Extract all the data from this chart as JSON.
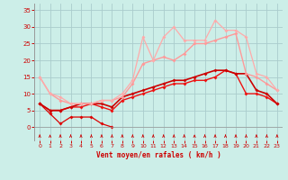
{
  "background_color": "#cceee8",
  "grid_color": "#aacccc",
  "xlabel": "Vent moyen/en rafales ( km/h )",
  "ylabel_ticks": [
    0,
    5,
    10,
    15,
    20,
    25,
    30,
    35
  ],
  "xlim": [
    -0.5,
    23.5
  ],
  "ylim": [
    -4,
    37
  ],
  "xticks": [
    0,
    1,
    2,
    3,
    4,
    5,
    6,
    7,
    8,
    9,
    10,
    11,
    12,
    13,
    14,
    15,
    16,
    17,
    18,
    19,
    20,
    21,
    22,
    23
  ],
  "series": [
    {
      "x": [
        0,
        1,
        2,
        3,
        4,
        5,
        6,
        7,
        8,
        9,
        10,
        11,
        12,
        13,
        14,
        15,
        16,
        17,
        18,
        19,
        20,
        21,
        22,
        23
      ],
      "y": [
        7,
        4,
        1,
        3,
        3,
        3,
        1,
        0,
        null,
        null,
        null,
        null,
        null,
        null,
        null,
        null,
        null,
        null,
        null,
        null,
        null,
        null,
        null,
        null
      ],
      "color": "#dd0000",
      "lw": 0.9,
      "marker": "D",
      "ms": 2.0
    },
    {
      "x": [
        0,
        1,
        2,
        3,
        4,
        5,
        6,
        7,
        8,
        9,
        10,
        11,
        12,
        13,
        14,
        15,
        16,
        17,
        18,
        19,
        20,
        21,
        22,
        23
      ],
      "y": [
        7,
        5,
        5,
        6,
        6,
        7,
        6,
        5,
        8,
        9,
        10,
        11,
        12,
        13,
        13,
        14,
        14,
        15,
        17,
        16,
        10,
        10,
        9,
        7
      ],
      "color": "#ee1111",
      "lw": 1.0,
      "marker": "D",
      "ms": 2.0
    },
    {
      "x": [
        0,
        1,
        2,
        3,
        4,
        5,
        6,
        7,
        8,
        9,
        10,
        11,
        12,
        13,
        14,
        15,
        16,
        17,
        18,
        19,
        20,
        21,
        22,
        23
      ],
      "y": [
        7,
        5,
        5,
        6,
        7,
        7,
        7,
        6,
        9,
        10,
        11,
        12,
        13,
        14,
        14,
        15,
        16,
        17,
        17,
        16,
        16,
        11,
        10,
        7
      ],
      "color": "#cc0000",
      "lw": 1.2,
      "marker": "D",
      "ms": 2.0
    },
    {
      "x": [
        0,
        1,
        2,
        3,
        4,
        5,
        6,
        7,
        8,
        9,
        10,
        11,
        12,
        13,
        14,
        15,
        16,
        17,
        18,
        19,
        20,
        21,
        22,
        23
      ],
      "y": [
        15,
        10,
        8,
        7,
        7,
        7,
        8,
        8,
        9,
        13,
        19,
        20,
        21,
        20,
        22,
        25,
        25,
        26,
        27,
        28,
        16,
        15,
        13,
        11
      ],
      "color": "#ff9999",
      "lw": 1.0,
      "marker": "D",
      "ms": 2.0
    },
    {
      "x": [
        0,
        1,
        2,
        3,
        4,
        5,
        6,
        7,
        8,
        9,
        10,
        11,
        12,
        13,
        14,
        15,
        16,
        17,
        18,
        19,
        20,
        21,
        22,
        23
      ],
      "y": [
        15,
        10,
        9,
        7,
        7,
        7,
        8,
        8,
        10,
        14,
        27,
        20,
        27,
        30,
        26,
        26,
        26,
        32,
        29,
        29,
        27,
        16,
        15,
        11
      ],
      "color": "#ffaaaa",
      "lw": 0.9,
      "marker": "D",
      "ms": 2.0
    }
  ],
  "wind_arrows_x": [
    0,
    1,
    2,
    3,
    4,
    5,
    6,
    7,
    8,
    9,
    10,
    11,
    12,
    13,
    14,
    15,
    16,
    17,
    18,
    19,
    20,
    21,
    22,
    23
  ]
}
